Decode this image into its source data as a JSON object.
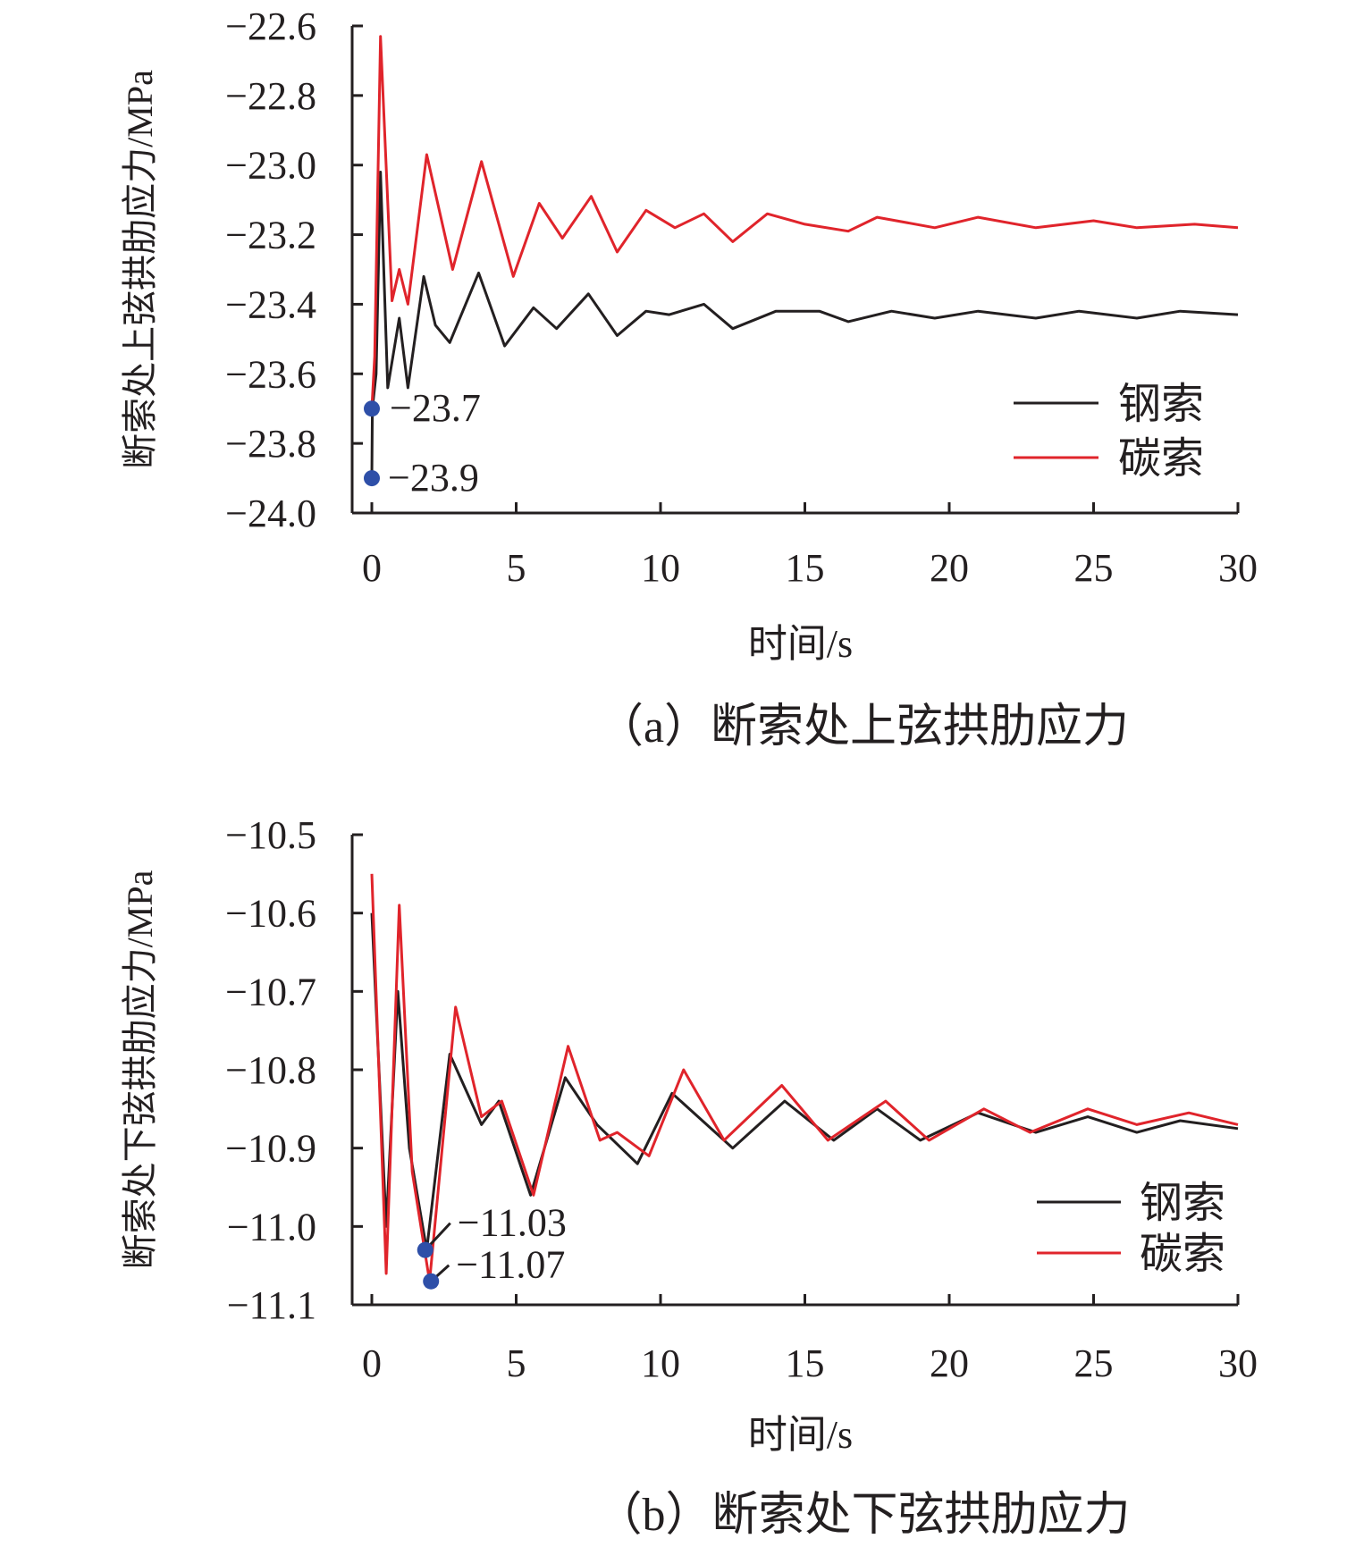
{
  "chart_data": [
    {
      "type": "line",
      "caption": "（a）断索处上弦拱肋应力",
      "xlabel": "时间/s",
      "ylabel": "断索处上弦拱肋应力/MPa",
      "xlim": [
        0,
        30
      ],
      "ylim": [
        -24.0,
        -22.6
      ],
      "xticks": [
        "0",
        "5",
        "10",
        "15",
        "20",
        "25",
        "30"
      ],
      "yticks": [
        "−22.6",
        "−22.8",
        "−23.0",
        "−23.2",
        "−23.4",
        "−23.6",
        "−23.8",
        "−24.0"
      ],
      "legend_position": "right",
      "series": [
        {
          "name": "钢索",
          "color": "#231f20",
          "x": [
            0,
            0.02,
            0.15,
            0.3,
            0.55,
            0.95,
            1.25,
            1.8,
            2.2,
            2.7,
            3.7,
            4.6,
            5.6,
            6.4,
            7.5,
            8.5,
            9.5,
            10.3,
            11.5,
            12.5,
            14,
            15.5,
            16.5,
            18,
            19.5,
            21,
            23,
            24.5,
            26.5,
            28,
            30
          ],
          "y": [
            -23.9,
            -23.7,
            -23.6,
            -23.02,
            -23.64,
            -23.44,
            -23.64,
            -23.32,
            -23.46,
            -23.51,
            -23.31,
            -23.52,
            -23.41,
            -23.47,
            -23.37,
            -23.49,
            -23.42,
            -23.43,
            -23.4,
            -23.47,
            -23.42,
            -23.42,
            -23.45,
            -23.42,
            -23.44,
            -23.42,
            -23.44,
            -23.42,
            -23.44,
            -23.42,
            -23.43
          ]
        },
        {
          "name": "碳索",
          "color": "#e0242b",
          "x": [
            0,
            0.1,
            0.3,
            0.7,
            0.95,
            1.25,
            1.9,
            2.8,
            3.8,
            4.9,
            5.8,
            6.6,
            7.6,
            8.5,
            9.5,
            10.5,
            11.5,
            12.5,
            13.7,
            15,
            16.5,
            17.5,
            19.5,
            21,
            23,
            25,
            26.5,
            28.5,
            30
          ],
          "y": [
            -23.7,
            -23.55,
            -22.63,
            -23.39,
            -23.3,
            -23.4,
            -22.97,
            -23.3,
            -22.99,
            -23.32,
            -23.11,
            -23.21,
            -23.09,
            -23.25,
            -23.13,
            -23.18,
            -23.14,
            -23.22,
            -23.14,
            -23.17,
            -23.19,
            -23.15,
            -23.18,
            -23.15,
            -23.18,
            -23.16,
            -23.18,
            -23.17,
            -23.18
          ]
        }
      ],
      "annotations": [
        {
          "x": 0,
          "y": -23.7,
          "label": "−23.7"
        },
        {
          "x": 0,
          "y": -23.9,
          "label": "−23.9"
        }
      ],
      "marker_color": "#2e4fa8"
    },
    {
      "type": "line",
      "caption": "（b）断索处下弦拱肋应力",
      "xlabel": "时间/s",
      "ylabel": "断索处下弦拱肋应力/MPa",
      "xlim": [
        0,
        30
      ],
      "ylim": [
        -11.1,
        -10.5
      ],
      "xticks": [
        "0",
        "5",
        "10",
        "15",
        "20",
        "25",
        "30"
      ],
      "yticks": [
        "−10.5",
        "−10.6",
        "−10.7",
        "−10.8",
        "−10.9",
        "−11.0",
        "−11.1"
      ],
      "legend_position": "right",
      "series": [
        {
          "name": "钢索",
          "color": "#231f20",
          "x": [
            0,
            0.5,
            0.9,
            1.3,
            1.9,
            2.7,
            3.8,
            4.4,
            5.5,
            6.7,
            7.8,
            9.2,
            10.4,
            12.5,
            14.3,
            16,
            17.5,
            19,
            21,
            23,
            24.8,
            26.5,
            28,
            30
          ],
          "y": [
            -10.6,
            -11.0,
            -10.7,
            -10.9,
            -11.03,
            -10.78,
            -10.87,
            -10.84,
            -10.96,
            -10.81,
            -10.87,
            -10.92,
            -10.83,
            -10.9,
            -10.84,
            -10.89,
            -10.85,
            -10.89,
            -10.855,
            -10.88,
            -10.86,
            -10.88,
            -10.865,
            -10.875
          ]
        },
        {
          "name": "碳索",
          "color": "#e0242b",
          "x": [
            0,
            0.5,
            0.95,
            1.4,
            2.0,
            2.9,
            3.8,
            4.5,
            5.6,
            6.8,
            7.9,
            8.5,
            9.6,
            10.8,
            12.2,
            14.2,
            15.8,
            17.8,
            19.3,
            21.2,
            22.8,
            24.8,
            26.5,
            28.3,
            30
          ],
          "y": [
            -10.55,
            -11.06,
            -10.59,
            -10.93,
            -11.07,
            -10.72,
            -10.86,
            -10.84,
            -10.96,
            -10.77,
            -10.89,
            -10.88,
            -10.91,
            -10.8,
            -10.89,
            -10.82,
            -10.89,
            -10.84,
            -10.89,
            -10.85,
            -10.88,
            -10.85,
            -10.87,
            -10.855,
            -10.87
          ]
        }
      ],
      "annotations": [
        {
          "x": 1.85,
          "y": -11.03,
          "label": "−11.03"
        },
        {
          "x": 2.05,
          "y": -11.07,
          "label": "−11.07"
        }
      ],
      "marker_color": "#2e4fa8"
    }
  ]
}
